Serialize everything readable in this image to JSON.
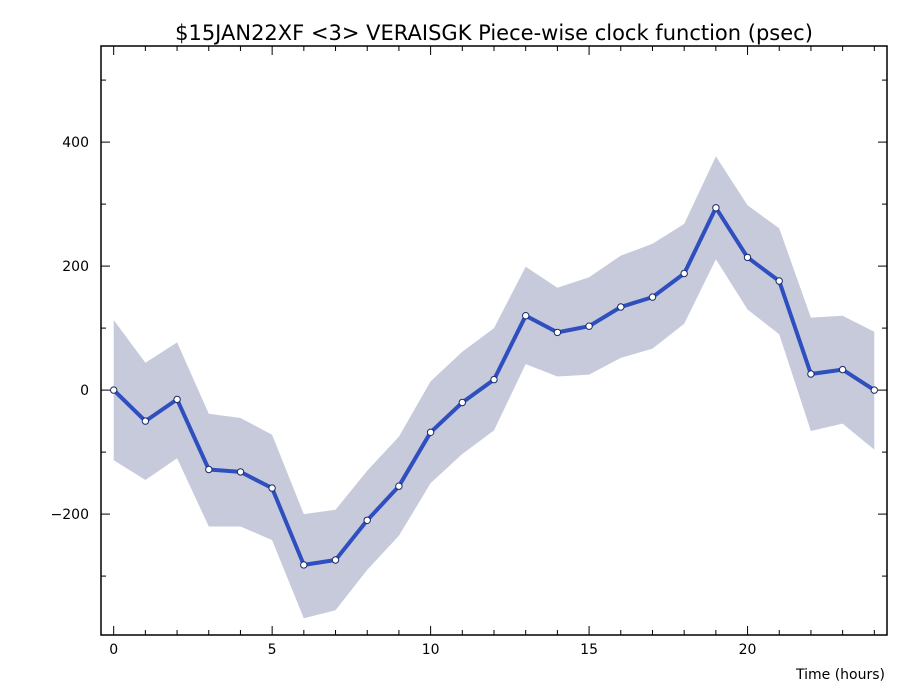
{
  "chart_data": {
    "type": "line",
    "title": "$15JAN22XF <3>  VERAISGK  Piece-wise clock function (psec)",
    "xlabel": "Time (hours)",
    "ylabel": "",
    "xlim": [
      -0.4,
      24.4
    ],
    "ylim": [
      -395,
      555
    ],
    "x_ticks": [
      0,
      5,
      10,
      15,
      20
    ],
    "y_ticks": [
      -200,
      0,
      200,
      400
    ],
    "grid": false,
    "band_color": "#c6cadb",
    "line_color": "#2f4fbf",
    "series": [
      {
        "x": [
          0,
          1,
          2,
          3,
          4,
          5,
          6,
          7,
          8,
          9,
          10,
          11,
          12,
          13,
          14,
          15,
          16,
          17,
          18,
          19,
          20,
          21,
          22,
          23,
          24
        ],
        "values": [
          0,
          -50,
          -15,
          -128,
          -132,
          -158,
          -282,
          -274,
          -210,
          -155,
          -68,
          -20,
          17,
          120,
          93,
          103,
          134,
          150,
          188,
          294,
          214,
          176,
          26,
          33,
          0
        ],
        "upper": [
          113,
          44,
          77,
          -38,
          -45,
          -72,
          -200,
          -193,
          -130,
          -75,
          14,
          62,
          100,
          199,
          165,
          182,
          217,
          236,
          268,
          377,
          298,
          261,
          117,
          120,
          94
        ],
        "lower": [
          -113,
          -145,
          -110,
          -220,
          -220,
          -242,
          -368,
          -355,
          -290,
          -235,
          -150,
          -103,
          -65,
          42,
          22,
          25,
          52,
          67,
          107,
          211,
          130,
          90,
          -66,
          -54,
          -96
        ]
      }
    ]
  }
}
